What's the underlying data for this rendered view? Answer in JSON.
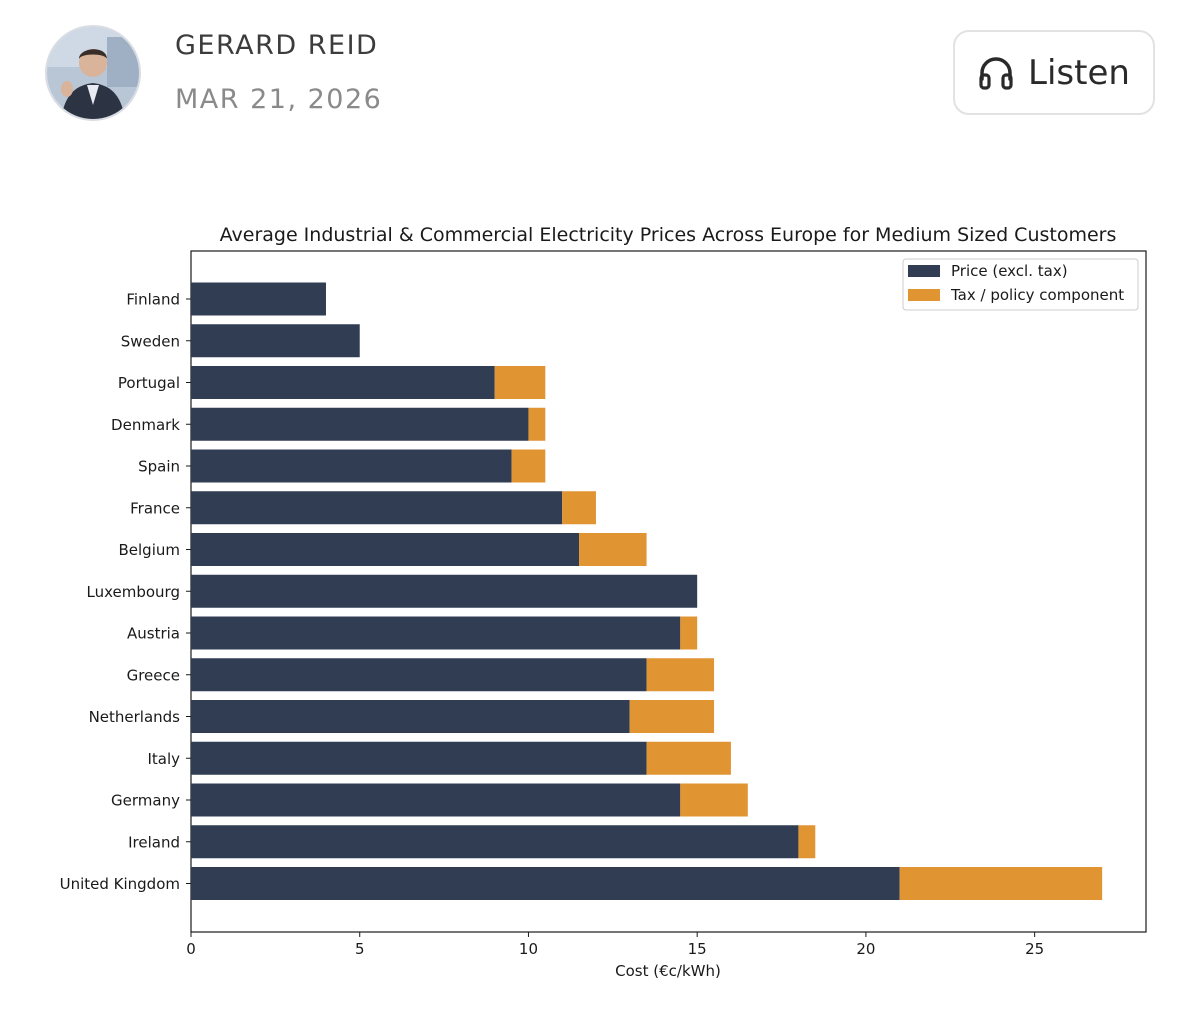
{
  "header": {
    "author": "GERARD REID",
    "date": "MAR 21, 2026",
    "listen_label": "Listen"
  },
  "icons": {
    "avatar": "author-avatar",
    "listen": "headphones-icon"
  },
  "colors": {
    "price": "#313d53",
    "tax": "#e09432",
    "axis": "#1a1a1a"
  },
  "chart_data": {
    "type": "bar",
    "orientation": "horizontal",
    "stacked": true,
    "title": "Average Industrial & Commercial Electricity Prices Across Europe for Medium Sized Customers",
    "xlabel": "Cost (€c/kWh)",
    "ylabel": "",
    "xlim": [
      0,
      28.3
    ],
    "xticks": [
      0,
      5,
      10,
      15,
      20,
      25
    ],
    "grid": false,
    "legend_position": "top-right",
    "categories": [
      "Finland",
      "Sweden",
      "Portugal",
      "Denmark",
      "Spain",
      "France",
      "Belgium",
      "Luxembourg",
      "Austria",
      "Greece",
      "Netherlands",
      "Italy",
      "Germany",
      "Ireland",
      "United Kingdom"
    ],
    "series": [
      {
        "name": "Price (excl. tax)",
        "color": "#313d53",
        "values": [
          4,
          5,
          9,
          10,
          9.5,
          11,
          11.5,
          15,
          14.5,
          13.5,
          13,
          13.5,
          14.5,
          18,
          21
        ]
      },
      {
        "name": "Tax / policy component",
        "color": "#e09432",
        "values": [
          0,
          0,
          1.5,
          0.5,
          1,
          1,
          2,
          0,
          0.5,
          2,
          2.5,
          2.5,
          2,
          0.5,
          6
        ]
      }
    ]
  }
}
